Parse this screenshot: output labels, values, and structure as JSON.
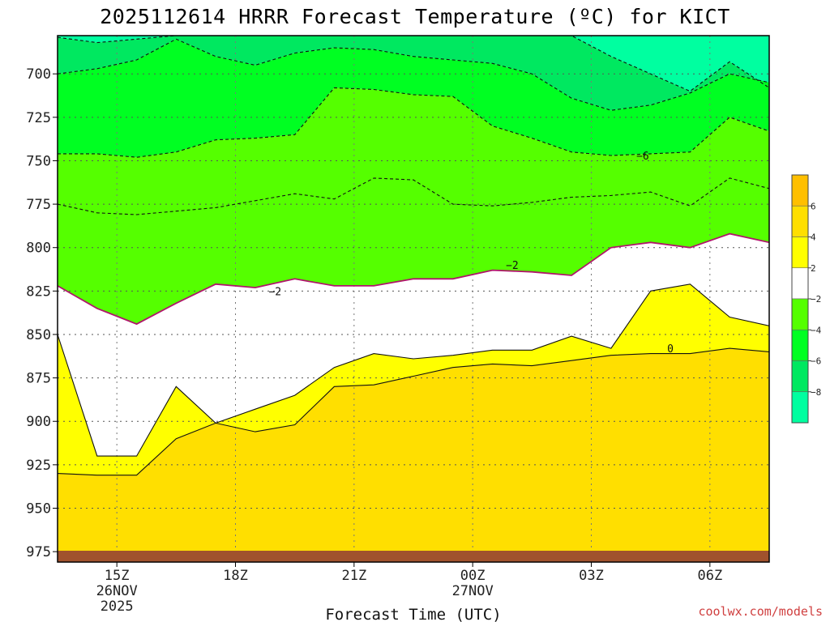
{
  "chart_data": {
    "type": "contour",
    "title": "2025112614 HRRR Forecast Temperature (ºC) for KICT",
    "xlabel": "Forecast Time (UTC)",
    "ylabel": "",
    "credit": "coolwx.com/models",
    "y_axis": {
      "ticks": [
        "700",
        "725",
        "750",
        "775",
        "800",
        "825",
        "850",
        "875",
        "900",
        "925",
        "950",
        "975"
      ],
      "range_hpa": [
        678,
        981
      ],
      "inverted": true
    },
    "x_axis": {
      "range_hours_utc": [
        13.5,
        31.5
      ],
      "ticks": [
        {
          "label": "15Z",
          "sub": [
            "26NOV",
            "2025"
          ]
        },
        {
          "label": "18Z",
          "sub": []
        },
        {
          "label": "21Z",
          "sub": []
        },
        {
          "label": "00Z",
          "sub": [
            "27NOV"
          ]
        },
        {
          "label": "03Z",
          "sub": []
        },
        {
          "label": "06Z",
          "sub": []
        }
      ]
    },
    "grid": true,
    "colorbar": {
      "labels": [
        "6",
        "4",
        "2",
        "−2",
        "−4",
        "−6",
        "−8"
      ],
      "bands": [
        {
          "range": "6 to 8",
          "color": "#ffbf00"
        },
        {
          "range": "4 to 6",
          "color": "#ffdf00"
        },
        {
          "range": "2 to 4",
          "color": "#ffff00"
        },
        {
          "range": "-2 to 2",
          "color": "#ffffff"
        },
        {
          "range": "-4 to -2",
          "color": "#55ff00"
        },
        {
          "range": "-6 to -4",
          "color": "#00ff22"
        },
        {
          "range": "-8 to -6",
          "color": "#00e860"
        },
        {
          "range": "-10 to -8",
          "color": "#00ffa0"
        }
      ]
    },
    "contour_labels": [
      {
        "text": "−6",
        "level": -6,
        "time_utc": 28.3,
        "p_hpa": 747
      },
      {
        "text": "−2",
        "level": -2,
        "time_utc": 25.0,
        "p_hpa": 810
      },
      {
        "text": "−2",
        "level": -2,
        "time_utc": 19.0,
        "p_hpa": 825
      },
      {
        "text": "0",
        "level": 0,
        "time_utc": 29.0,
        "p_hpa": 858
      }
    ],
    "ground_color": "#a0522d",
    "isotherm_pressures_hpa": {
      "time_utc": [
        13.5,
        14.5,
        15.5,
        16.5,
        17.5,
        18.5,
        19.5,
        20.5,
        21.5,
        22.5,
        23.5,
        24.5,
        25.5,
        26.5,
        27.5,
        28.5,
        29.5,
        30.5,
        31.5
      ],
      "minus8": [
        679,
        682,
        680,
        678,
        678,
        678,
        678,
        678,
        678,
        678,
        678,
        678,
        678,
        678,
        690,
        700,
        710,
        693,
        708
      ],
      "minus6": [
        700,
        697,
        692,
        680,
        690,
        695,
        688,
        685,
        686,
        690,
        692,
        694,
        700,
        714,
        721,
        718,
        711,
        700,
        705
      ],
      "minus4": [
        746,
        746,
        748,
        745,
        738,
        737,
        735,
        708,
        709,
        712,
        713,
        730,
        737,
        745,
        747,
        746,
        745,
        725,
        733
      ],
      "minus2": [
        775,
        780,
        781,
        779,
        777,
        773,
        769,
        772,
        760,
        761,
        775,
        776,
        774,
        771,
        770,
        768,
        776,
        760,
        766
      ],
      "zero": [
        822,
        835,
        844,
        832,
        821,
        823,
        818,
        822,
        822,
        818,
        818,
        813,
        814,
        816,
        800,
        797,
        800,
        792,
        797
      ],
      "two": [
        850,
        920,
        920,
        880,
        901,
        893,
        885,
        869,
        861,
        864,
        862,
        859,
        859,
        851,
        858,
        825,
        821,
        840,
        845
      ],
      "four": [
        930,
        931,
        931,
        910,
        901,
        906,
        902,
        880,
        879,
        874,
        869,
        867,
        868,
        865,
        862,
        861,
        861,
        858,
        860
      ]
    }
  }
}
